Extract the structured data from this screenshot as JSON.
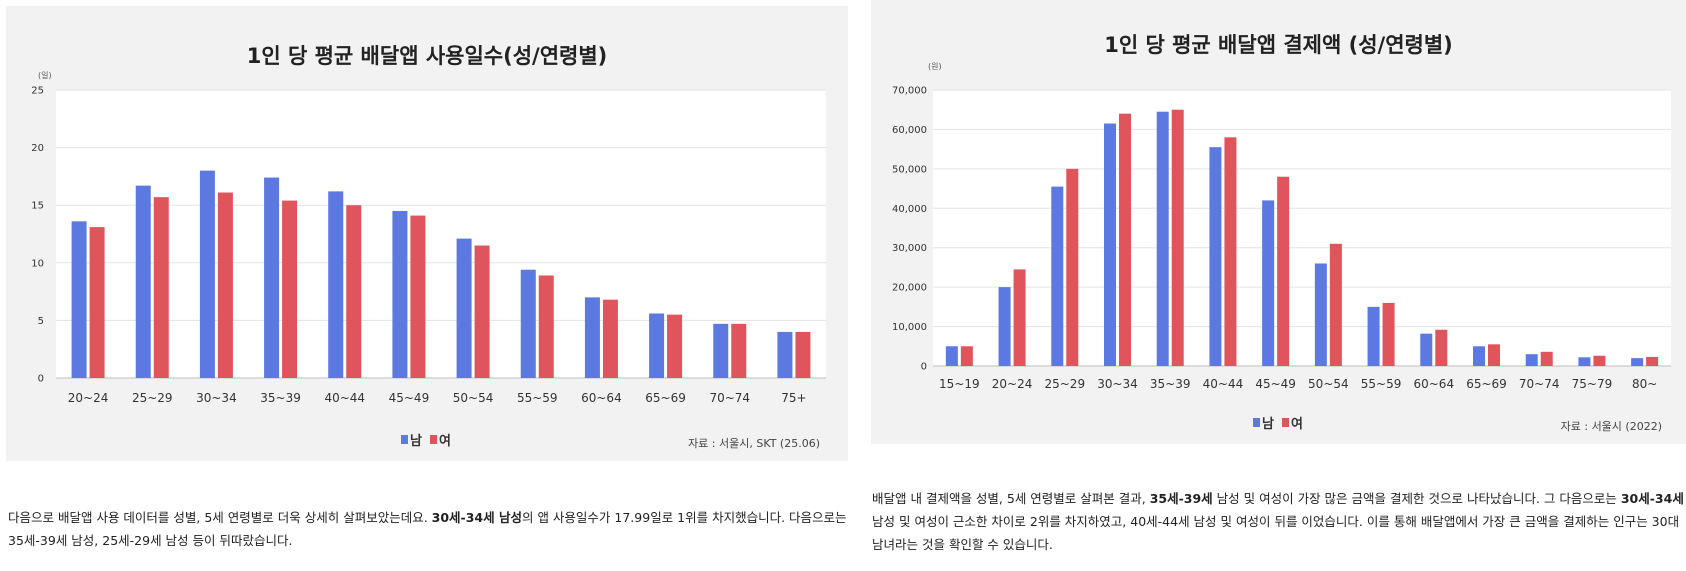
{
  "colors": {
    "male": "#5b79e0",
    "female": "#e0555c",
    "grid": "#e3e3e3",
    "bg": "#f2f2f2"
  },
  "chart_data": [
    {
      "type": "bar",
      "title": "1인 당 평균 배달앱 사용일수(성/연령별)",
      "unit": "(일)",
      "categories": [
        "20~24",
        "25~29",
        "30~34",
        "35~39",
        "40~44",
        "45~49",
        "50~54",
        "55~59",
        "60~64",
        "65~69",
        "70~74",
        "75+"
      ],
      "series": [
        {
          "name": "남",
          "values": [
            13.6,
            16.7,
            18.0,
            17.4,
            16.2,
            14.5,
            12.1,
            9.4,
            7.0,
            5.6,
            4.7,
            4.0
          ]
        },
        {
          "name": "여",
          "values": [
            13.1,
            15.7,
            16.1,
            15.4,
            15.0,
            14.1,
            11.5,
            8.9,
            6.8,
            5.5,
            4.7,
            4.0
          ]
        }
      ],
      "yticks": [
        "0",
        "5",
        "10",
        "15",
        "20",
        "25"
      ],
      "ylim": [
        0,
        25
      ],
      "legend_position": "bottom",
      "source": "자료 : 서울시, SKT (25.06)"
    },
    {
      "type": "bar",
      "title": "1인 당 평균 배달앱 결제액 (성/연령별)",
      "unit": "(원)",
      "categories": [
        "15~19",
        "20~24",
        "25~29",
        "30~34",
        "35~39",
        "40~44",
        "45~49",
        "50~54",
        "55~59",
        "60~64",
        "65~69",
        "70~74",
        "75~79",
        "80~"
      ],
      "series": [
        {
          "name": "남",
          "values": [
            5000,
            20000,
            45500,
            61500,
            64500,
            55500,
            42000,
            26000,
            15000,
            8200,
            5000,
            3000,
            2200,
            2000
          ]
        },
        {
          "name": "여",
          "values": [
            5000,
            24500,
            50000,
            64000,
            65000,
            58000,
            48000,
            31000,
            16000,
            9200,
            5500,
            3600,
            2600,
            2300
          ]
        }
      ],
      "yticks": [
        "0",
        "10,000",
        "20,000",
        "30,000",
        "40,000",
        "50,000",
        "60,000",
        "70,000"
      ],
      "ylim": [
        0,
        70000
      ],
      "legend_position": "bottom",
      "source": "자료 : 서울시 (2022)"
    }
  ],
  "paragraphs": {
    "left": {
      "t1": "다음으로 배달앱 사용 데이터를 성별, 5세 연령별로 더욱 상세히 살펴보았는데요. ",
      "b1": "30세-34세 남성",
      "t2": "의 앱 사용일수가 17.99일로 1위를 차지했습니다. 다음으로는 35세-39세 남성, 25세-29세 남성 등이 뒤따랐습니다."
    },
    "right": {
      "t1": "배달앱 내 결제액을 성별, 5세 연령별로 살펴본 결과, ",
      "b1": "35세-39세",
      "t2": " 남성 및 여성이 가장 많은 금액을 결제한 것으로 나타났습니다. 그 다음으로는 ",
      "b2": "30세-34세",
      "t3": " 남성 및 여성이 근소한 차이로 2위를 차지하였고, 40세-44세 남성 및 여성이 뒤를 이었습니다. 이를 통해 배달앱에서 가장 큰 금액을 결제하는 인구는 30대 남녀라는 것을 확인할 수 있습니다."
    }
  }
}
